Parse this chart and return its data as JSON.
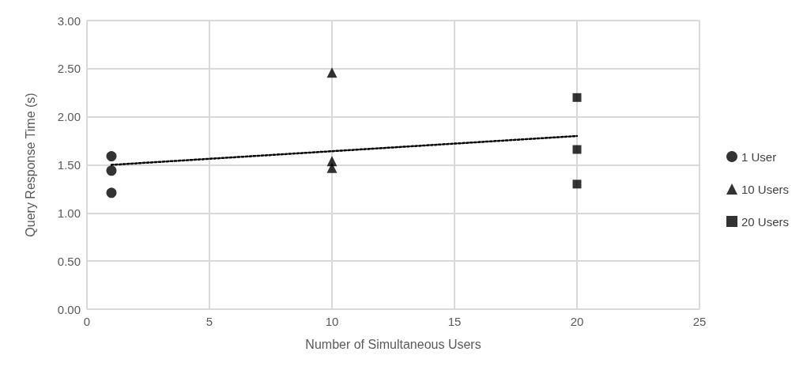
{
  "chart_data": {
    "type": "scatter",
    "xlabel": "Number of Simultaneous Users",
    "ylabel": "Query Response Time (s)",
    "xlim": [
      0,
      25
    ],
    "xticks": [
      0,
      5,
      10,
      15,
      20,
      25
    ],
    "ylim": [
      0,
      3
    ],
    "yticks": [
      {
        "value": 0,
        "label": "0.00"
      },
      {
        "value": 0.5,
        "label": "0.50"
      },
      {
        "value": 1,
        "label": "1.00"
      },
      {
        "value": 1.5,
        "label": "1.50"
      },
      {
        "value": 2,
        "label": "2.00"
      },
      {
        "value": 2.5,
        "label": "2.50"
      },
      {
        "value": 3,
        "label": "3.00"
      }
    ],
    "grid": true,
    "legend": "right",
    "series": [
      {
        "name": "1 User",
        "color": "#000000",
        "marker": "circle",
        "x": [
          1,
          1,
          1
        ],
        "values": [
          1.59,
          1.44,
          1.21
        ]
      },
      {
        "name": "10 Users",
        "color": "#000000",
        "marker": "triangle",
        "x": [
          10,
          10,
          10
        ],
        "values": [
          2.46,
          1.54,
          1.47
        ]
      },
      {
        "name": "20 Users",
        "color": "#000000",
        "marker": "square",
        "x": [
          20,
          20,
          20
        ],
        "values": [
          2.2,
          1.66,
          1.3
        ]
      },
      {
        "type": "line",
        "color": "#000000",
        "marker": "none",
        "line_style": "dotted",
        "x": [
          1,
          20
        ],
        "values": [
          1.5,
          1.8
        ]
      }
    ]
  }
}
